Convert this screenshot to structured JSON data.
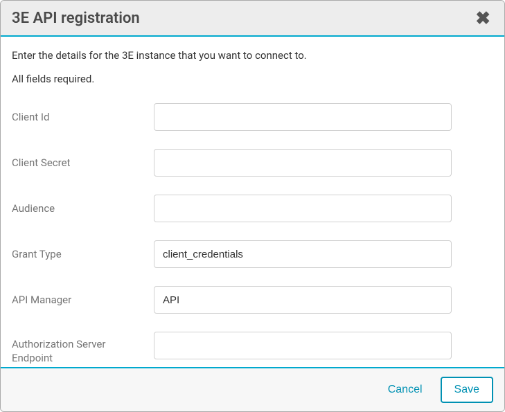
{
  "dialog": {
    "title": "3E API registration",
    "intro": "Enter the details for the 3E instance that you want to connect to.",
    "required_note": "All fields required."
  },
  "fields": {
    "client_id": {
      "label": "Client Id",
      "value": ""
    },
    "client_secret": {
      "label": "Client Secret",
      "value": ""
    },
    "audience": {
      "label": "Audience",
      "value": ""
    },
    "grant_type": {
      "label": "Grant Type",
      "value": "client_credentials"
    },
    "api_manager": {
      "label": "API Manager",
      "value": "API"
    },
    "auth_server_endpoint": {
      "label": "Authorization Server Endpoint",
      "value": ""
    }
  },
  "footer": {
    "cancel_label": "Cancel",
    "save_label": "Save"
  },
  "colors": {
    "accent": "#00a9ce",
    "button_text": "#0091b3",
    "header_bg": "#ededed",
    "footer_bg": "#f7f7f7",
    "border": "#d0d0d0",
    "label_color": "#757575",
    "text_color": "#333333",
    "title_color": "#4a4a4a"
  }
}
